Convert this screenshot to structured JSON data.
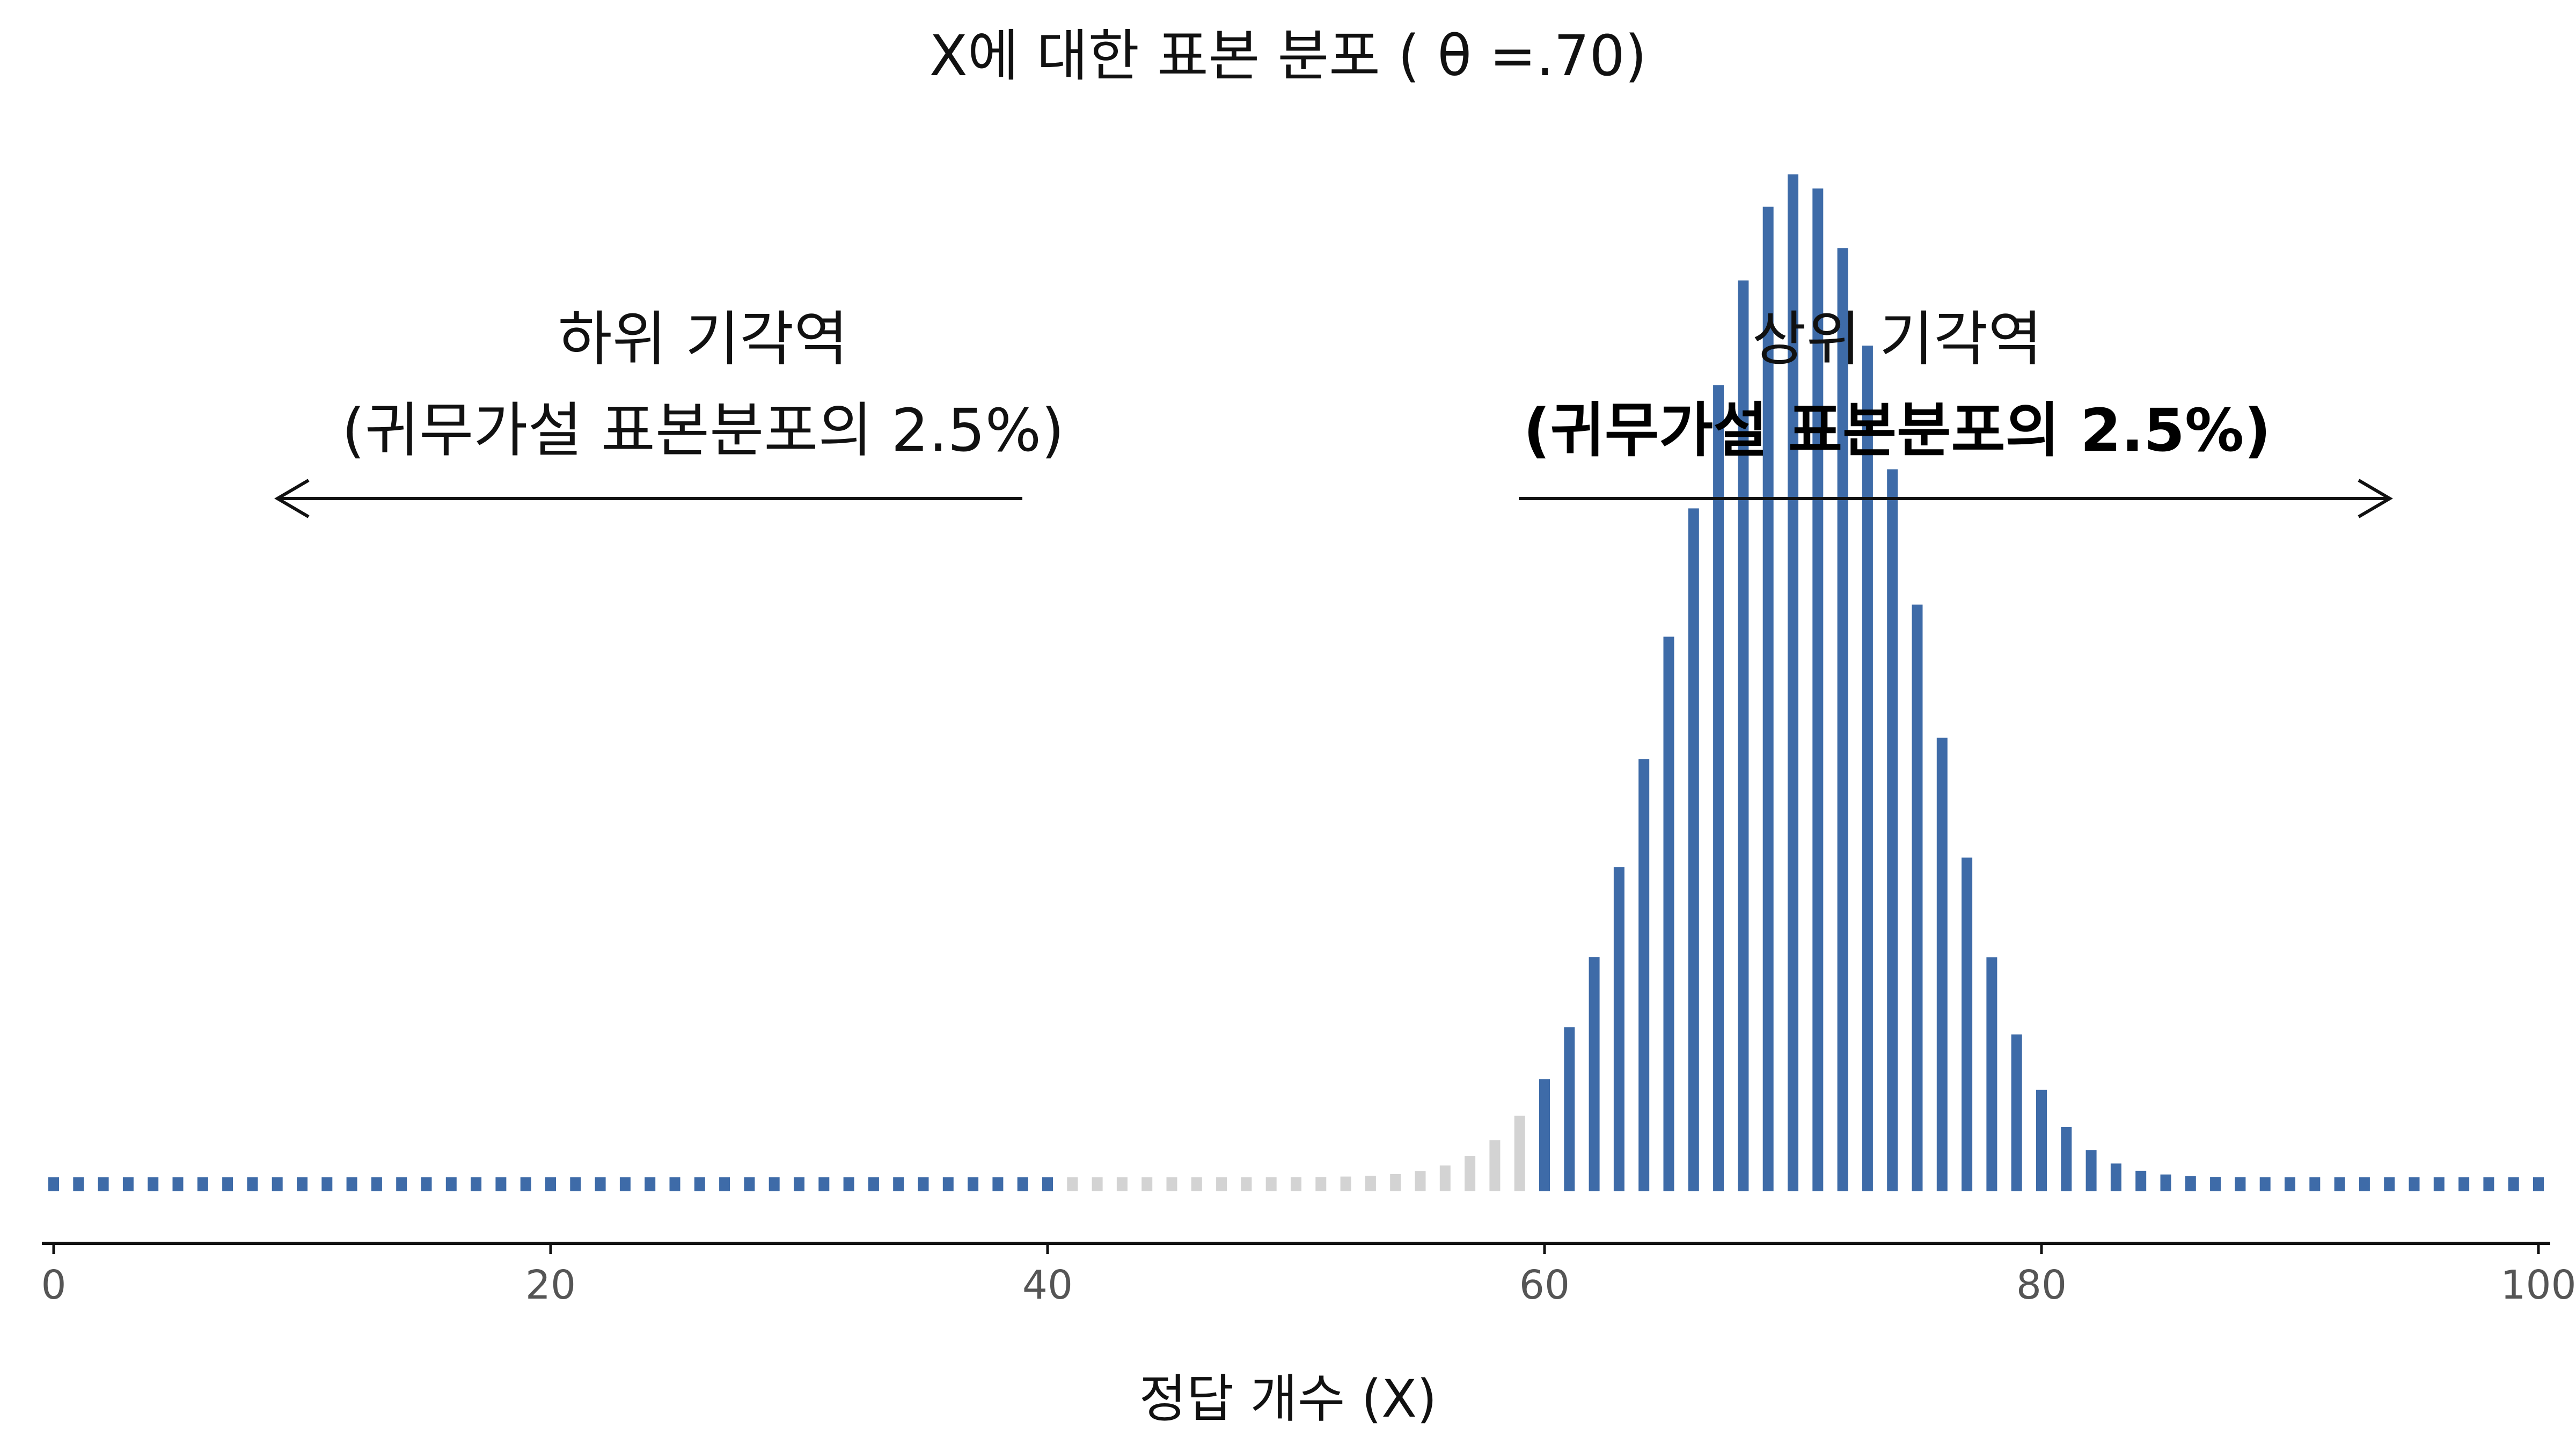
{
  "chart_data": {
    "type": "bar",
    "title": "X에 대한 표본 분포 ( θ =.70)",
    "xlabel": "정답 개수 (X)",
    "ylabel": "",
    "xlim": [
      0,
      100
    ],
    "n": 100,
    "theta": 0.7,
    "x_ticks": [
      "0",
      "20",
      "40",
      "60",
      "80",
      "100"
    ],
    "critical_region": {
      "lower_max": 40,
      "upper_min": 60
    },
    "annotations": {
      "lower": {
        "line1": "하위 기각역",
        "line2": "(귀무가설 표본분포의 2.5%)",
        "arrow_direction": "left"
      },
      "upper": {
        "line1": "상위 기각역",
        "line2": "(귀무가설 표본분포의 2.5%)",
        "arrow_direction": "right"
      }
    },
    "note": "bar heights are binomial(n=100, p=0.70) probabilities"
  },
  "colors": {
    "critical": "#3E6BA8",
    "non_critical": "#D3D3D3",
    "axis": "#111111",
    "arrow": "#111111"
  }
}
